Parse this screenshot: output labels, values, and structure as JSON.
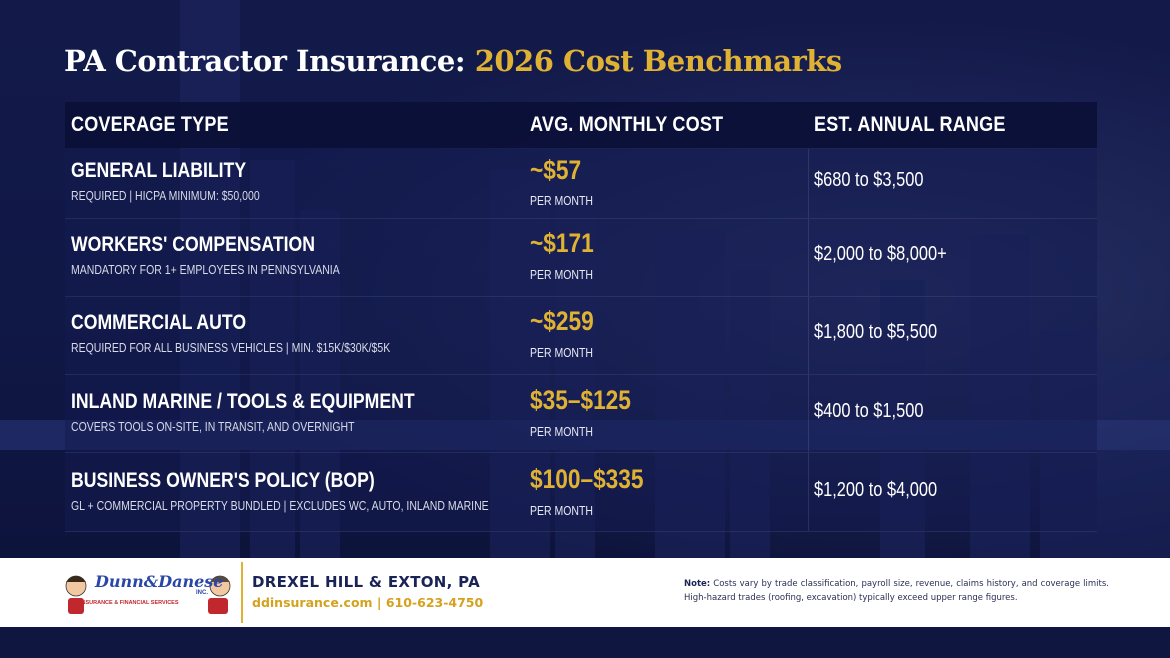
{
  "title": {
    "main": "PA Contractor Insurance:",
    "accent": "2026 Cost Benchmarks"
  },
  "table": {
    "headers": [
      "Coverage Type",
      "Avg. Monthly Cost",
      "Est. Annual Range"
    ],
    "rows": [
      {
        "name": "General Liability",
        "note": "Required | HICPA minimum: $50,000",
        "cost": "~$57",
        "per": "per month",
        "range": "$680 to $3,500"
      },
      {
        "name": "Workers' Compensation",
        "note": "Mandatory for 1+ employees in Pennsylvania",
        "cost": "~$171",
        "per": "per month",
        "range": "$2,000 to $8,000+"
      },
      {
        "name": "Commercial Auto",
        "note": "Required for all business vehicles | Min. $15K/$30K/$5K",
        "cost": "~$259",
        "per": "per month",
        "range": "$1,800 to $5,500"
      },
      {
        "name": "Inland Marine / Tools & Equipment",
        "note": "Covers tools on-site, in transit, and overnight",
        "cost": "$35–$125",
        "per": "per month",
        "range": "$400 to $1,500"
      },
      {
        "name": "Business Owner's Policy (BOP)",
        "note": "GL + commercial property bundled | Excludes WC, auto, inland marine",
        "cost": "$100–$335",
        "per": "per month",
        "range": "$1,200 to $4,000"
      }
    ]
  },
  "footer": {
    "logo_text": "Dunn&Danese",
    "logo_inc": "INC.",
    "logo_sub": "INSURANCE & FINANCIAL SERVICES",
    "location": "DREXEL HILL & EXTON, PA",
    "contact": "ddinsurance.com | 610-623-4750",
    "note_label": "Note:",
    "note_text": "Costs vary by trade classification, payroll size, revenue, claims history, and coverage limits. High-hazard trades (roofing, excavation) typically exceed upper range figures."
  },
  "colors": {
    "background": "#101846",
    "accent_gold": "#e0b233",
    "navy": "#1a2356",
    "white": "#ffffff"
  }
}
